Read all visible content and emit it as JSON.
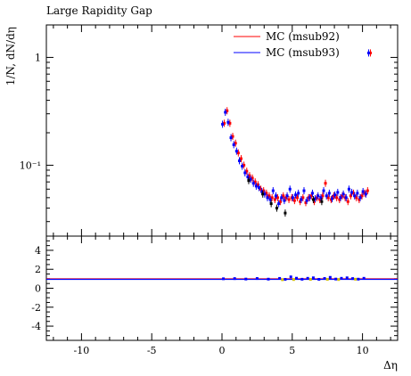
{
  "chart_data": [
    {
      "type": "scatter",
      "title": "Large Rapidity Gap",
      "ylabel": "1/N, dN/dη",
      "xlabel": "",
      "xlim": [
        -12.5,
        12.5
      ],
      "ylim": [
        0.022,
        2.0
      ],
      "yscale": "log",
      "ytick_labels": [
        "10⁻¹",
        "1"
      ],
      "ytick_values": [
        0.1,
        1
      ],
      "legend_position": "top-right",
      "series": [
        {
          "name": "MC (msub92)",
          "color": "#ff0000",
          "x": [
            0.1,
            0.3,
            0.5,
            0.7,
            0.9,
            1.1,
            1.3,
            1.5,
            1.7,
            1.9,
            2.1,
            2.3,
            2.5,
            2.7,
            2.9,
            3.1,
            3.3,
            3.5,
            3.7,
            3.9,
            4.1,
            4.3,
            4.5,
            4.7,
            4.9,
            5.1,
            5.3,
            5.5,
            5.7,
            5.9,
            6.1,
            6.3,
            6.5,
            6.7,
            6.9,
            7.1,
            7.3,
            7.5,
            7.7,
            7.9,
            8.1,
            8.3,
            8.5,
            8.7,
            8.9,
            9.1,
            9.3,
            9.5,
            9.7,
            9.9,
            10.1,
            10.3,
            10.5
          ],
          "y": [
            0.245,
            0.32,
            0.245,
            0.185,
            0.16,
            0.13,
            0.115,
            0.1,
            0.088,
            0.08,
            0.076,
            0.07,
            0.066,
            0.06,
            0.058,
            0.055,
            0.052,
            0.05,
            0.048,
            0.05,
            0.046,
            0.052,
            0.05,
            0.048,
            0.05,
            0.047,
            0.05,
            0.046,
            0.05,
            0.045,
            0.05,
            0.052,
            0.046,
            0.05,
            0.048,
            0.052,
            0.068,
            0.05,
            0.048,
            0.052,
            0.05,
            0.048,
            0.052,
            0.05,
            0.046,
            0.052,
            0.055,
            0.05,
            0.048,
            0.052,
            0.055,
            0.058,
            1.1
          ]
        },
        {
          "name": "MC (msub93)",
          "color": "#0000ff",
          "x": [
            0.1,
            0.3,
            0.5,
            0.7,
            0.9,
            1.1,
            1.3,
            1.5,
            1.7,
            1.9,
            2.1,
            2.3,
            2.5,
            2.7,
            2.9,
            3.1,
            3.3,
            3.5,
            3.7,
            3.9,
            4.1,
            4.3,
            4.5,
            4.7,
            4.9,
            5.1,
            5.3,
            5.5,
            5.7,
            5.9,
            6.1,
            6.3,
            6.5,
            6.7,
            6.9,
            7.1,
            7.3,
            7.5,
            7.7,
            7.9,
            8.1,
            8.3,
            8.5,
            8.7,
            8.9,
            9.1,
            9.3,
            9.5,
            9.7,
            9.9,
            10.1,
            10.3,
            10.5
          ],
          "y": [
            0.24,
            0.31,
            0.25,
            0.18,
            0.155,
            0.135,
            0.11,
            0.098,
            0.085,
            0.078,
            0.074,
            0.068,
            0.064,
            0.062,
            0.057,
            0.054,
            0.05,
            0.048,
            0.058,
            0.052,
            0.044,
            0.05,
            0.047,
            0.052,
            0.06,
            0.05,
            0.053,
            0.055,
            0.048,
            0.058,
            0.047,
            0.05,
            0.055,
            0.049,
            0.052,
            0.05,
            0.058,
            0.052,
            0.055,
            0.049,
            0.053,
            0.056,
            0.05,
            0.054,
            0.05,
            0.06,
            0.056,
            0.052,
            0.055,
            0.05,
            0.057,
            0.054,
            1.1
          ]
        },
        {
          "name": "",
          "color": "#000000",
          "x": [
            1.9,
            2.9,
            3.5,
            3.9,
            4.5,
            6.5,
            7.1
          ],
          "y": [
            0.072,
            0.054,
            0.044,
            0.04,
            0.036,
            0.048,
            0.046
          ]
        }
      ],
      "legend": [
        "MC (msub92)",
        "MC (msub93)"
      ]
    },
    {
      "type": "scatter",
      "title": "",
      "xlabel": "Δη",
      "ylabel": "",
      "xlim": [
        -12.5,
        12.5
      ],
      "ylim": [
        -5.5,
        5.5
      ],
      "xtick_labels": [
        "-10",
        "-5",
        "0",
        "5",
        "10"
      ],
      "ytick_labels": [
        "4",
        "2",
        "0",
        "-2",
        "-4"
      ],
      "ytick_values": [
        4,
        2,
        0,
        -2,
        -4
      ],
      "reference_line": 1,
      "series": [
        {
          "name": "",
          "color": "#0000ff",
          "x": [
            0.1,
            0.9,
            1.7,
            2.5,
            3.3,
            4.1,
            4.5,
            4.9,
            5.3,
            5.7,
            6.1,
            6.5,
            6.9,
            7.3,
            7.7,
            8.1,
            8.5,
            8.9,
            9.3,
            9.7,
            10.1
          ],
          "y": [
            1.0,
            1.02,
            0.97,
            1.03,
            0.96,
            1.04,
            0.94,
            1.2,
            1.06,
            0.95,
            1.05,
            1.1,
            0.94,
            1.03,
            1.15,
            0.97,
            1.05,
            1.1,
            1.02,
            0.96,
            1.05
          ]
        },
        {
          "name": "",
          "color": "#d4c000",
          "x": [
            4.3,
            5.1,
            6.3,
            7.5,
            8.3,
            9.5
          ],
          "y": [
            0.9,
            0.92,
            0.93,
            0.94,
            0.92,
            0.95
          ]
        }
      ]
    }
  ]
}
